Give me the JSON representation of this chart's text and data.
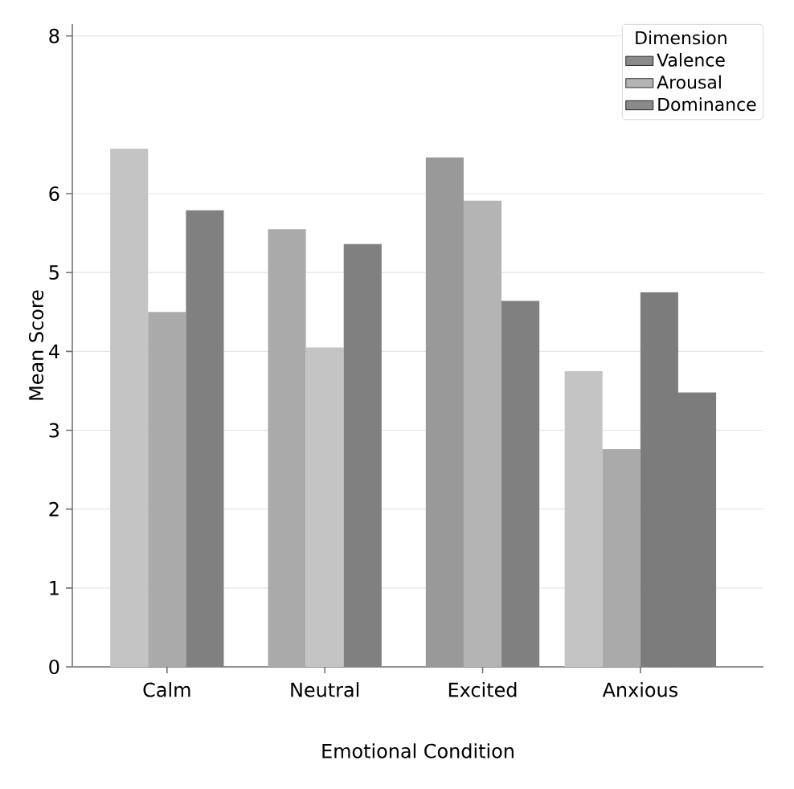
{
  "chart_data": {
    "type": "bar",
    "xlabel": "Emotional Condition",
    "ylabel": "Mean Score",
    "legend_title": "Dimension",
    "categories": [
      "Calm",
      "Neutral",
      "Excited",
      "Anxious"
    ],
    "series": [
      {
        "name": "Valence",
        "color": "#8a8a8a",
        "colors": [
          "#c4c4c4",
          "#aaaaaa",
          "#999999",
          "#c4c4c4"
        ],
        "values": [
          6.57,
          5.55,
          6.46,
          3.75
        ]
      },
      {
        "name": "Arousal",
        "color": "#b4b4b4",
        "colors": [
          "#aaaaaa",
          "#c4c4c4",
          "#b4b4b4",
          "#aaaaaa"
        ],
        "values": [
          4.5,
          4.05,
          5.91,
          2.76
        ]
      },
      {
        "name": "Dominance",
        "color": "#8a8a8a",
        "colors": [
          "#808080",
          "#808080",
          "#808080",
          "#7c7c7c"
        ],
        "values": [
          5.79,
          5.36,
          4.64,
          4.75
        ]
      },
      {
        "color": "#7c7c7c",
        "values": [
          null,
          null,
          null,
          3.48
        ]
      }
    ],
    "ylim": [
      0,
      8.15
    ],
    "yticks": [
      0,
      1,
      2,
      3,
      4,
      5,
      6,
      8
    ],
    "grid": "y",
    "legend": "top right"
  }
}
